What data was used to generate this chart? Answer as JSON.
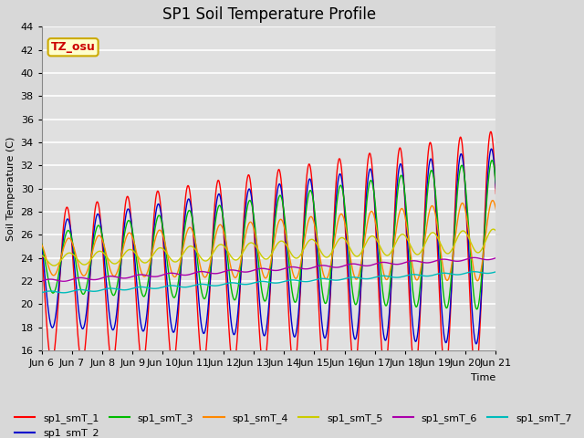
{
  "title": "SP1 Soil Temperature Profile",
  "xlabel": "Time",
  "ylabel": "Soil Temperature (C)",
  "ylim": [
    16,
    44
  ],
  "yticks": [
    16,
    18,
    20,
    22,
    24,
    26,
    28,
    30,
    32,
    34,
    36,
    38,
    40,
    42,
    44
  ],
  "n_days": 15,
  "xtick_labels": [
    "Jun 6",
    "Jun 7",
    "Jun 8",
    "Jun 9",
    "Jun 10",
    "Jun 11",
    "Jun 12",
    "Jun 13",
    "Jun 14",
    "Jun 15",
    "Jun 16",
    "Jun 17",
    "Jun 18",
    "Jun 19",
    "Jun 20",
    "Jun 21"
  ],
  "series_colors": {
    "sp1_smT_1": "#FF0000",
    "sp1_smT_2": "#0000CC",
    "sp1_smT_3": "#00BB00",
    "sp1_smT_4": "#FF8800",
    "sp1_smT_5": "#CCCC00",
    "sp1_smT_6": "#AA00AA",
    "sp1_smT_7": "#00BBBB"
  },
  "annotation_text": "TZ_osu",
  "annotation_color": "#CC0000",
  "annotation_bg": "#FFFFCC",
  "annotation_border": "#CCAA00",
  "fig_bg_color": "#D8D8D8",
  "plot_bg_color": "#E0E0E0",
  "grid_color": "#FFFFFF",
  "title_fontsize": 12,
  "axis_fontsize": 8,
  "legend_fontsize": 8,
  "linewidth": 1.0
}
